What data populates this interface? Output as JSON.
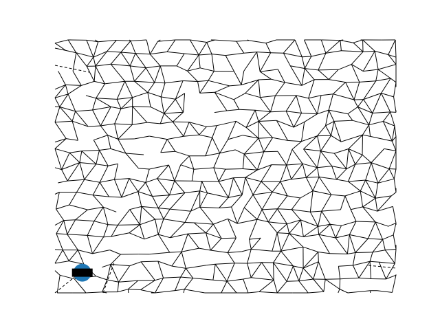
{
  "chart_data": {
    "type": "voronoi",
    "title": "",
    "xlabel": "",
    "ylabel": "",
    "axes_visible": false,
    "colors": {
      "edge": "#000000",
      "highlight_point": "#1f77b4",
      "background": "#ffffff"
    },
    "xlim": [
      0,
      1
    ],
    "ylim": [
      0,
      1
    ],
    "highlight_point": {
      "x": 0.08,
      "y": 0.08
    },
    "seed": 7,
    "grid_columns": 24,
    "grid_rows": 19
  }
}
